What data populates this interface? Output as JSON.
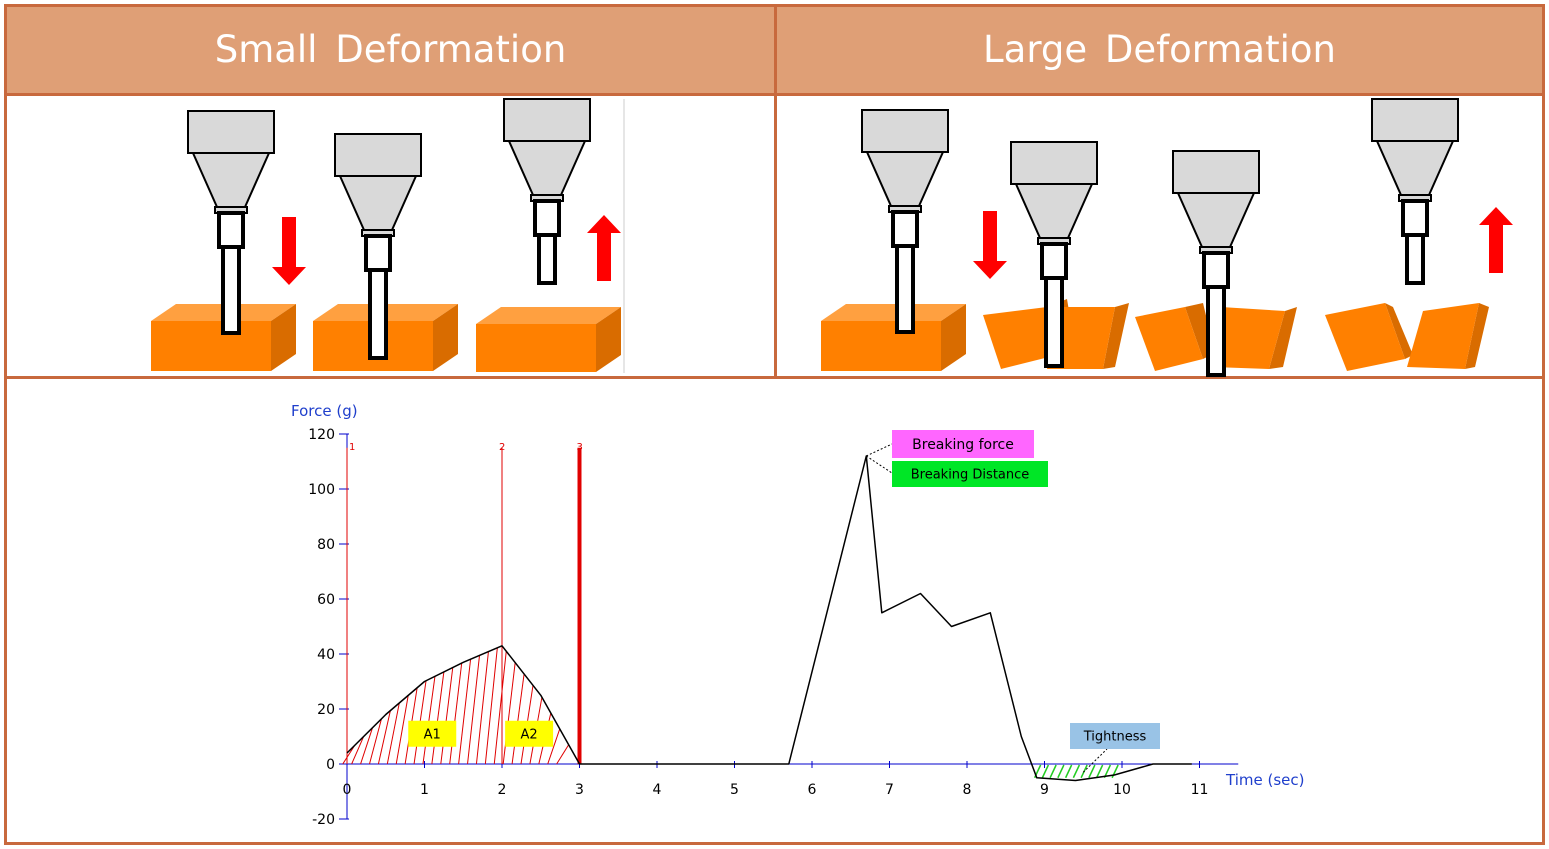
{
  "headers": {
    "small": "Small  Deformation",
    "large": "Large  Deformation"
  },
  "colors": {
    "header_bg": "#df9f76",
    "border": "#c8693d",
    "sample": "#ff8000",
    "arrow": "#ff0000",
    "axis": "#0000cc",
    "marker": "#e00000"
  },
  "chart_data": {
    "type": "line",
    "ylabel": "Force (g)",
    "xlabel": "Time (sec)",
    "ylim": [
      -20,
      120
    ],
    "xlim": [
      0,
      11
    ],
    "x_ticks": [
      0,
      1,
      2,
      3,
      4,
      5,
      6,
      7,
      8,
      9,
      10,
      11
    ],
    "y_ticks": [
      -20,
      0,
      20,
      40,
      60,
      80,
      100,
      120
    ],
    "markers": [
      {
        "label": "1",
        "x": 0
      },
      {
        "label": "2",
        "x": 2
      },
      {
        "label": "3",
        "x": 3
      }
    ],
    "series": [
      {
        "x": [
          0,
          0.5,
          1,
          1.5,
          2,
          2.5,
          3,
          3.5,
          5.7,
          6.7,
          6.9,
          7.4,
          7.8,
          8.3,
          8.7,
          8.9,
          9.4,
          9.9,
          10.4,
          10.9
        ],
        "y": [
          4,
          18,
          30,
          37,
          43,
          25,
          0,
          0,
          0,
          112,
          55,
          62,
          50,
          55,
          10,
          -5,
          -6,
          -4,
          0,
          0
        ]
      }
    ],
    "regions": [
      {
        "label": "A1",
        "x": [
          0,
          2
        ]
      },
      {
        "label": "A2",
        "x": [
          2,
          3
        ]
      }
    ],
    "annotations": [
      {
        "text": "Breaking force",
        "x": 6.7,
        "y": 112,
        "color": "#ff66ff"
      },
      {
        "text": "Breaking Distance",
        "x": 6.7,
        "y": 112,
        "color": "#00e626"
      },
      {
        "text": "Tightness",
        "x": 9.5,
        "y": -5,
        "color": "#99c3e6"
      }
    ]
  }
}
